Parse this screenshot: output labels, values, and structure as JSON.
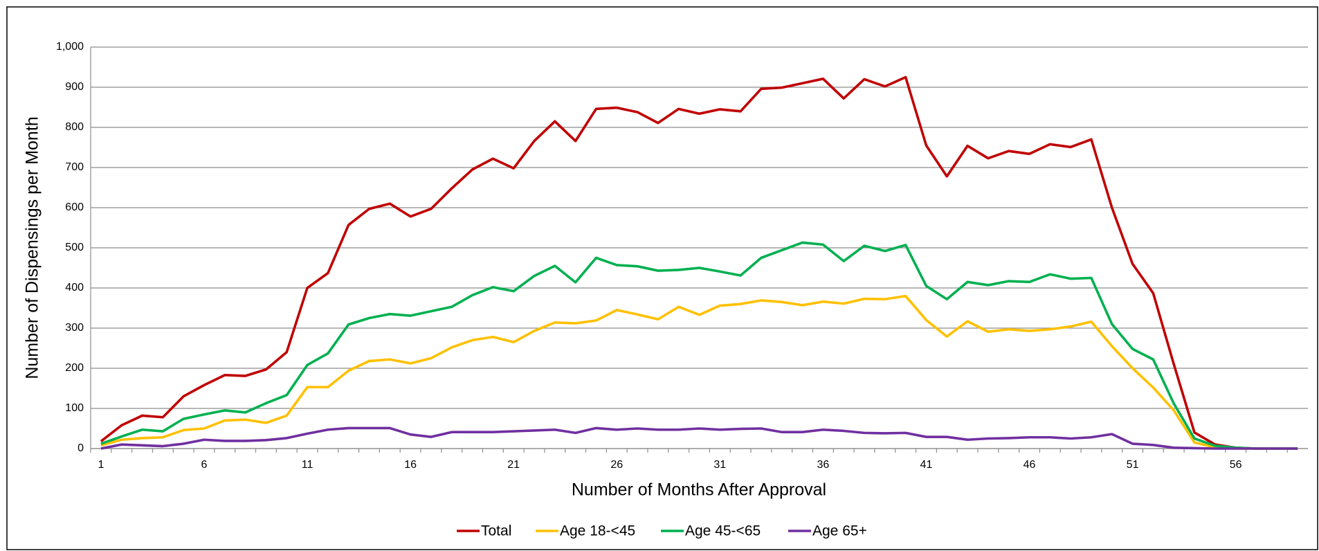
{
  "chart_data": {
    "type": "line",
    "x_label": "Number of Months After Approval",
    "y_label": "Number of Dispensings per Month",
    "categories": [
      "1",
      null,
      null,
      null,
      null,
      "6",
      null,
      null,
      null,
      null,
      "11",
      null,
      null,
      null,
      null,
      "16",
      null,
      null,
      null,
      null,
      "21",
      null,
      null,
      null,
      null,
      "26",
      null,
      null,
      null,
      null,
      "31",
      null,
      null,
      null,
      null,
      "36",
      null,
      null,
      null,
      null,
      "41",
      null,
      null,
      null,
      null,
      "46",
      null,
      null,
      null,
      null,
      "51",
      null,
      null,
      null,
      null,
      "56",
      null,
      null,
      null
    ],
    "ylim": [
      0,
      1000
    ],
    "yticks": [
      0,
      100,
      200,
      300,
      400,
      500,
      600,
      700,
      800,
      900,
      {
        "value": 1000,
        "label": "1,000"
      }
    ],
    "grid": true,
    "legend": "bottom",
    "series": [
      {
        "name": "Total",
        "color": "#c00000",
        "values": [
          18,
          58,
          82,
          78,
          130,
          158,
          183,
          181,
          197,
          240,
          400,
          437,
          557,
          597,
          610,
          578,
          597,
          648,
          695,
          722,
          698,
          766,
          815,
          766,
          846,
          849,
          838,
          811,
          846,
          834,
          845,
          840,
          896,
          899,
          910,
          921,
          872,
          920,
          902,
          925,
          755,
          678,
          754,
          723,
          741,
          734,
          758,
          751,
          770,
          600,
          460,
          387,
          210,
          40,
          10,
          2,
          0,
          0,
          0
        ]
      },
      {
        "name": "Age 18-<45",
        "color": "#ffc000",
        "values": [
          8,
          22,
          26,
          28,
          46,
          50,
          70,
          72,
          64,
          82,
          153,
          153,
          194,
          218,
          222,
          212,
          225,
          252,
          270,
          278,
          265,
          293,
          314,
          312,
          319,
          345,
          334,
          322,
          353,
          333,
          356,
          360,
          369,
          365,
          357,
          366,
          361,
          373,
          372,
          380,
          320,
          279,
          317,
          291,
          297,
          293,
          297,
          304,
          316,
          255,
          200,
          152,
          95,
          15,
          3,
          0,
          0,
          0,
          0
        ]
      },
      {
        "name": "Age 45-<65",
        "color": "#00b050",
        "values": [
          12,
          30,
          47,
          43,
          74,
          85,
          95,
          90,
          113,
          133,
          208,
          237,
          309,
          325,
          335,
          331,
          342,
          353,
          382,
          402,
          392,
          430,
          455,
          414,
          475,
          457,
          454,
          443,
          445,
          450,
          441,
          431,
          475,
          494,
          513,
          508,
          467,
          505,
          492,
          507,
          405,
          372,
          415,
          407,
          417,
          415,
          434,
          423,
          425,
          310,
          248,
          222,
          112,
          25,
          7,
          2,
          0,
          0,
          0
        ]
      },
      {
        "name": "Age 65+",
        "color": "#7030a0",
        "values": [
          0,
          10,
          8,
          6,
          12,
          22,
          19,
          19,
          21,
          26,
          37,
          47,
          51,
          51,
          51,
          35,
          29,
          41,
          41,
          41,
          43,
          45,
          47,
          39,
          51,
          47,
          50,
          47,
          47,
          50,
          47,
          49,
          50,
          41,
          41,
          47,
          44,
          39,
          38,
          39,
          29,
          29,
          22,
          25,
          26,
          28,
          28,
          25,
          28,
          36,
          12,
          9,
          2,
          1,
          0,
          0,
          0,
          0,
          0
        ]
      }
    ]
  }
}
